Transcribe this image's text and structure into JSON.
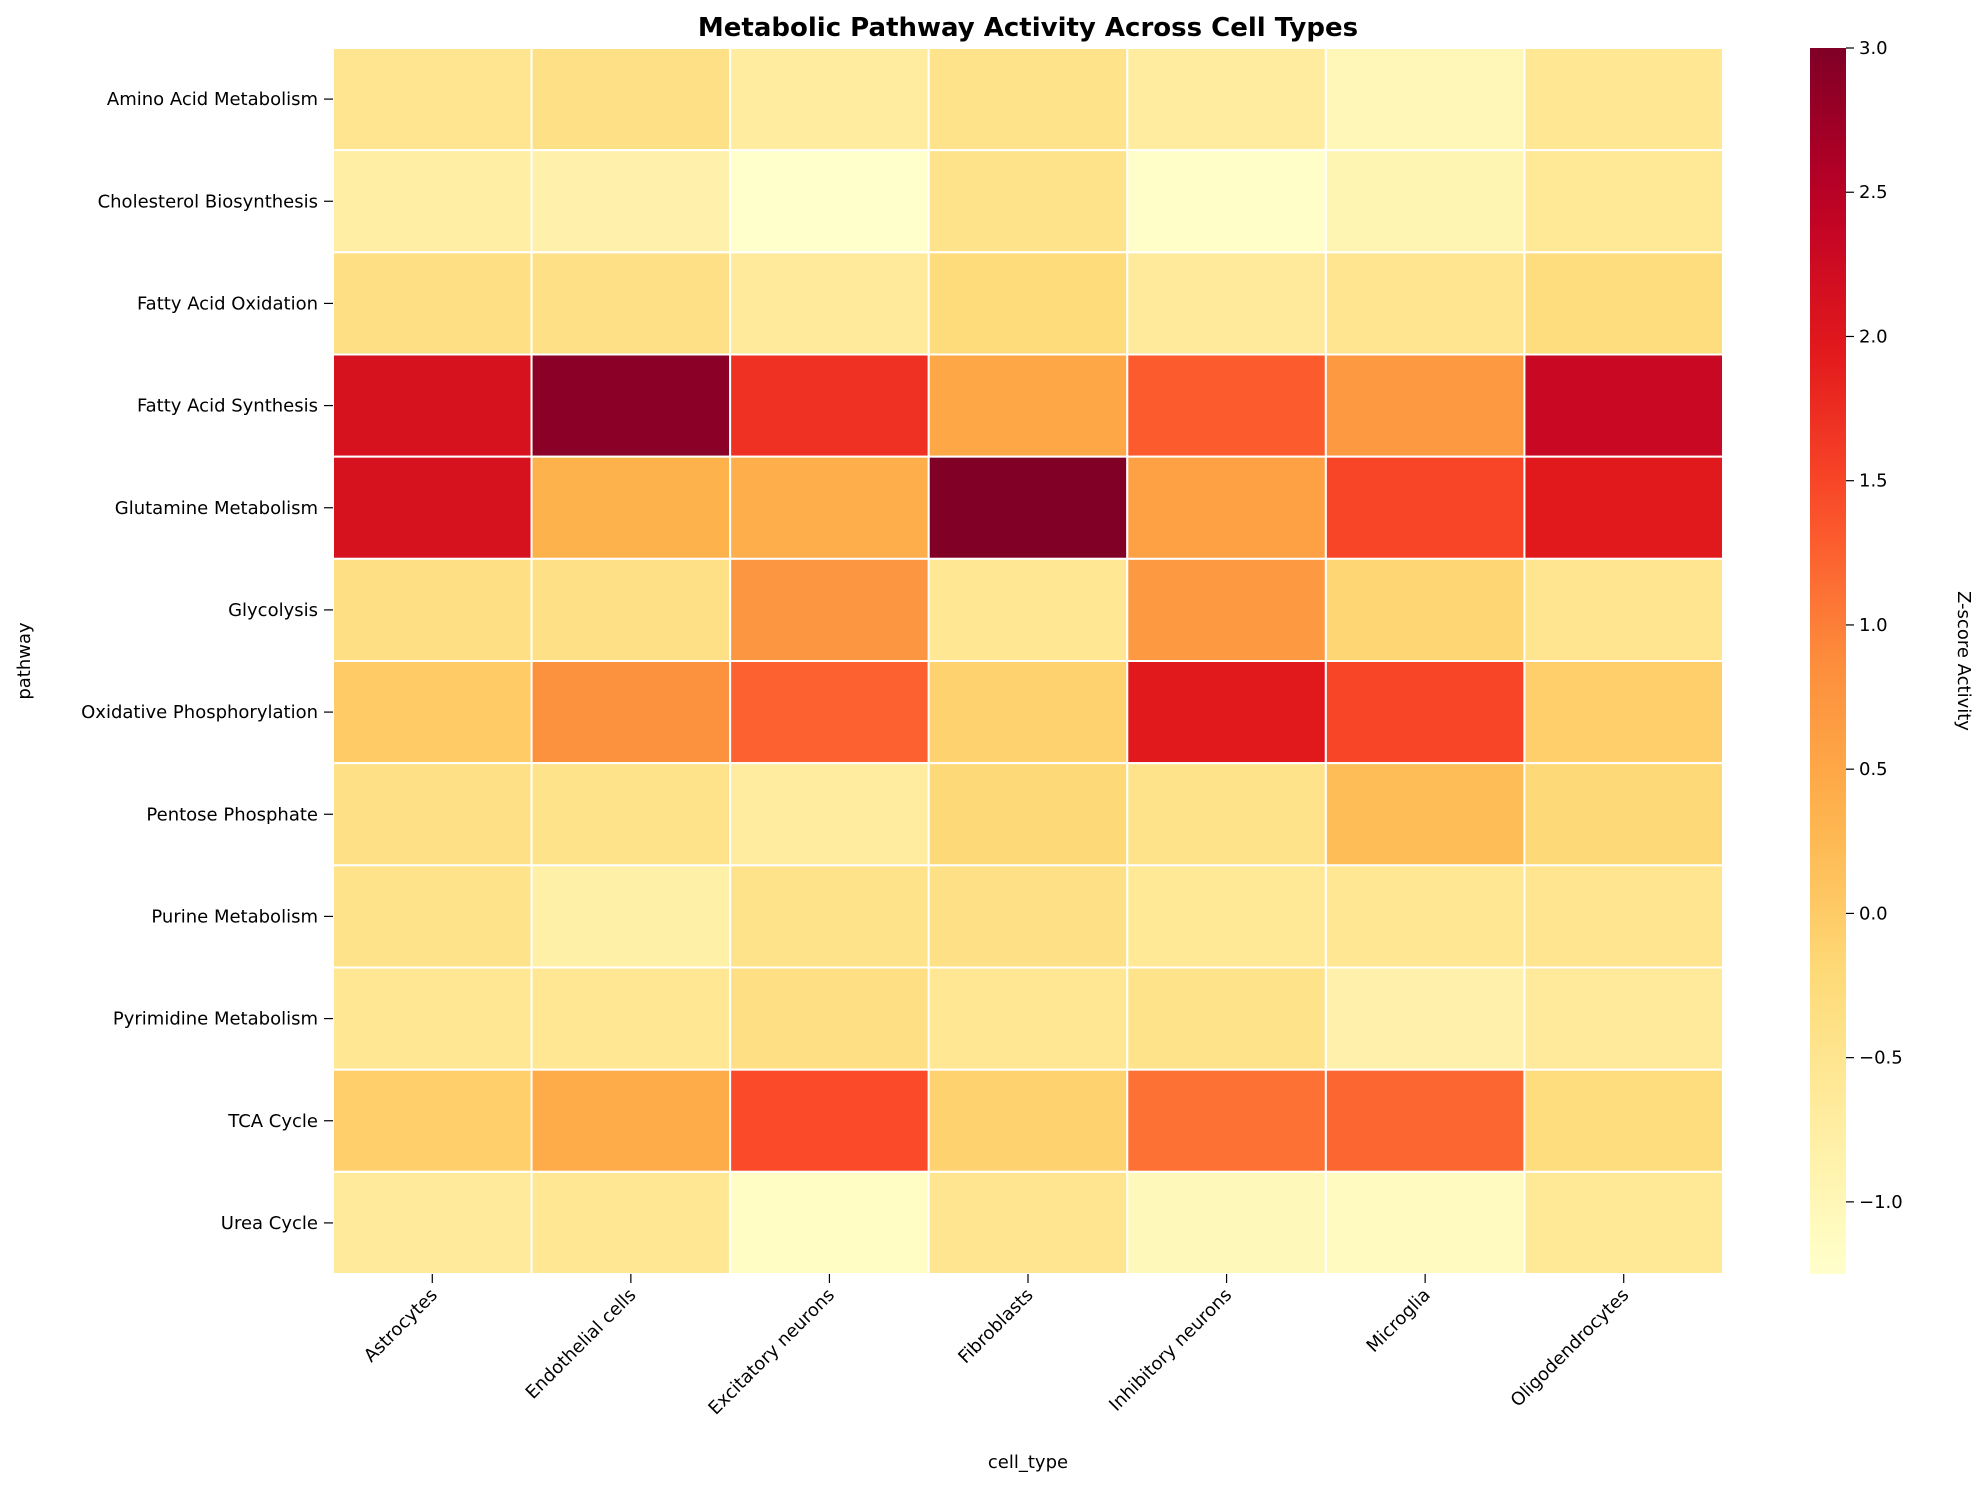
{
  "chart_data": {
    "type": "heatmap",
    "title": "Metabolic Pathway Activity Across Cell Types",
    "xlabel": "cell_type",
    "ylabel": "pathway",
    "colorbar_label": "Z-score Activity",
    "colormap": "YlOrRd",
    "vmin": -1.25,
    "vmax": 3.0,
    "colorbar_ticks": [
      -1.0,
      -0.5,
      0.0,
      0.5,
      1.0,
      1.5,
      2.0,
      2.5,
      3.0
    ],
    "colorbar_tick_labels": [
      "−1.0",
      "−0.5",
      "0.0",
      "0.5",
      "1.0",
      "1.5",
      "2.0",
      "2.5",
      "3.0"
    ],
    "cell_gridline_color": "#ffffff",
    "x_categories": [
      "Astrocytes",
      "Endothelial cells",
      "Excitatory neurons",
      "Fibroblasts",
      "Inhibitory neurons",
      "Microglia",
      "Oligodendrocytes"
    ],
    "y_categories": [
      "Amino Acid Metabolism",
      "Cholesterol Biosynthesis",
      "Fatty Acid Oxidation",
      "Fatty Acid Synthesis",
      "Glutamine Metabolism",
      "Glycolysis",
      "Oxidative Phosphorylation",
      "Pentose Phosphate",
      "Purine Metabolism",
      "Pyrimidine Metabolism",
      "TCA Cycle",
      "Urea Cycle"
    ],
    "values": [
      [
        -0.5,
        -0.4,
        -0.7,
        -0.45,
        -0.7,
        -1.0,
        -0.55
      ],
      [
        -0.75,
        -0.85,
        -1.25,
        -0.45,
        -1.2,
        -0.95,
        -0.6
      ],
      [
        -0.35,
        -0.4,
        -0.65,
        -0.25,
        -0.65,
        -0.5,
        -0.3
      ],
      [
        2.1,
        2.9,
        1.7,
        0.5,
        1.3,
        0.7,
        2.3
      ],
      [
        2.1,
        0.35,
        0.4,
        3.0,
        0.6,
        1.5,
        1.95
      ],
      [
        -0.35,
        -0.4,
        0.75,
        -0.55,
        0.7,
        -0.15,
        -0.5
      ],
      [
        0.0,
        0.8,
        1.25,
        -0.1,
        1.95,
        1.5,
        -0.05
      ],
      [
        -0.4,
        -0.45,
        -0.7,
        -0.2,
        -0.45,
        0.2,
        -0.2
      ],
      [
        -0.45,
        -0.8,
        -0.45,
        -0.4,
        -0.6,
        -0.55,
        -0.5
      ],
      [
        -0.55,
        -0.55,
        -0.35,
        -0.55,
        -0.45,
        -0.85,
        -0.65
      ],
      [
        -0.05,
        0.45,
        1.45,
        -0.1,
        1.1,
        1.2,
        -0.3
      ],
      [
        -0.65,
        -0.55,
        -1.15,
        -0.5,
        -1.05,
        -1.1,
        -0.6
      ]
    ]
  }
}
